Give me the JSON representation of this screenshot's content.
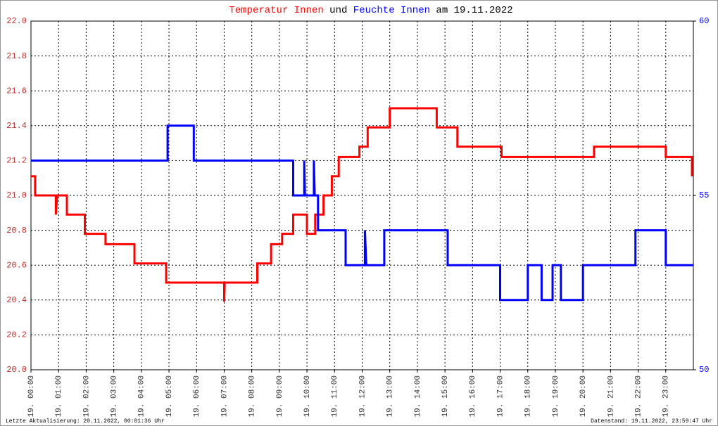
{
  "chart_data": {
    "type": "line",
    "title_connector": "und",
    "title_suffix": "am 19.11.2022",
    "footer_left": "Letzte Aktualisierung: 20.11.2022, 00:01:36 Uhr",
    "footer_right": "Datenstand: 19.11.2022, 23:59:47 Uhr",
    "xlim": [
      0,
      24
    ],
    "xticks": [
      {
        "value": 0,
        "label": "19. 00:00"
      },
      {
        "value": 1,
        "label": "19. 01:00"
      },
      {
        "value": 2,
        "label": "19. 02:00"
      },
      {
        "value": 3,
        "label": "19. 03:00"
      },
      {
        "value": 4,
        "label": "19. 04:00"
      },
      {
        "value": 5,
        "label": "19. 05:00"
      },
      {
        "value": 6,
        "label": "19. 06:00"
      },
      {
        "value": 7,
        "label": "19. 07:00"
      },
      {
        "value": 8,
        "label": "19. 08:00"
      },
      {
        "value": 9,
        "label": "19. 09:00"
      },
      {
        "value": 10,
        "label": "19. 10:00"
      },
      {
        "value": 11,
        "label": "19. 11:00"
      },
      {
        "value": 12,
        "label": "19. 12:00"
      },
      {
        "value": 13,
        "label": "19. 13:00"
      },
      {
        "value": 14,
        "label": "19. 14:00"
      },
      {
        "value": 15,
        "label": "19. 15:00"
      },
      {
        "value": 16,
        "label": "19. 16:00"
      },
      {
        "value": 17,
        "label": "19. 17:00"
      },
      {
        "value": 18,
        "label": "19. 18:00"
      },
      {
        "value": 19,
        "label": "19. 19:00"
      },
      {
        "value": 20,
        "label": "19. 20:00"
      },
      {
        "value": 21,
        "label": "19. 21:00"
      },
      {
        "value": 22,
        "label": "19. 22:00"
      },
      {
        "value": 23,
        "label": "19. 23:00"
      }
    ],
    "ylim": [
      20.0,
      22.0
    ],
    "yticks": [
      {
        "value": 20,
        "label": "20.0"
      },
      20.2,
      20.4,
      20.6,
      20.8,
      {
        "value": 21,
        "label": "21.0"
      },
      21.2,
      21.4,
      21.6,
      21.8,
      {
        "value": 22,
        "label": "22.0"
      }
    ],
    "y2lim": [
      50,
      60
    ],
    "y2ticks": [
      50,
      55,
      60
    ],
    "grid": true,
    "series": [
      {
        "name": "Temperatur Innen",
        "color": "#ff0000",
        "x": [
          0,
          0.15,
          0.15,
          0.9,
          0.9,
          0.95,
          1.3,
          1.3,
          1.95,
          1.95,
          2.7,
          2.7,
          3.75,
          3.75,
          4.9,
          4.9,
          7.0,
          7.0,
          7.02,
          8.2,
          8.2,
          8.7,
          8.7,
          9.1,
          9.1,
          9.5,
          9.5,
          10.0,
          10.0,
          10.3,
          10.3,
          10.6,
          10.6,
          10.9,
          10.9,
          11.15,
          11.15,
          11.9,
          11.9,
          12.2,
          12.2,
          13.0,
          13.0,
          14.7,
          14.7,
          15.45,
          15.45,
          17.05,
          17.05,
          20.4,
          20.4,
          23.0,
          23.0,
          23.95,
          23.95
        ],
        "values": [
          21.11,
          21.11,
          21.0,
          21.0,
          20.89,
          21.0,
          21.0,
          20.89,
          20.89,
          20.78,
          20.78,
          20.72,
          20.72,
          20.61,
          20.61,
          20.5,
          20.5,
          20.39,
          20.5,
          20.5,
          20.61,
          20.61,
          20.72,
          20.72,
          20.78,
          20.78,
          20.89,
          20.89,
          20.78,
          20.78,
          20.89,
          20.89,
          21.0,
          21.0,
          21.11,
          21.11,
          21.22,
          21.22,
          21.28,
          21.28,
          21.39,
          21.39,
          21.5,
          21.5,
          21.39,
          21.39,
          21.28,
          21.28,
          21.22,
          21.22,
          21.28,
          21.28,
          21.22,
          21.22,
          21.11
        ]
      },
      {
        "name": "Feuchte Innen",
        "color": "#0000ff",
        "axis": "y2",
        "x": [
          0,
          4.95,
          4.95,
          5.9,
          5.9,
          9.5,
          9.5,
          9.9,
          9.9,
          9.93,
          10.25,
          10.25,
          10.28,
          10.4,
          10.4,
          11.4,
          11.4,
          12.1,
          12.1,
          12.15,
          12.8,
          12.8,
          15.1,
          15.1,
          17.0,
          17.0,
          18.0,
          18.0,
          18.5,
          18.5,
          18.9,
          18.9,
          19.2,
          19.2,
          20.0,
          20.0,
          21.9,
          21.9,
          23.0,
          23.0,
          24
        ],
        "values": [
          56,
          56,
          57,
          57,
          56,
          56,
          55,
          55,
          56,
          55,
          55,
          56,
          55,
          55,
          54,
          54,
          53,
          53,
          54,
          53,
          53,
          54,
          54,
          53,
          53,
          52,
          52,
          53,
          53,
          52,
          52,
          53,
          53,
          52,
          52,
          53,
          53,
          54,
          54,
          53,
          53
        ]
      }
    ]
  }
}
